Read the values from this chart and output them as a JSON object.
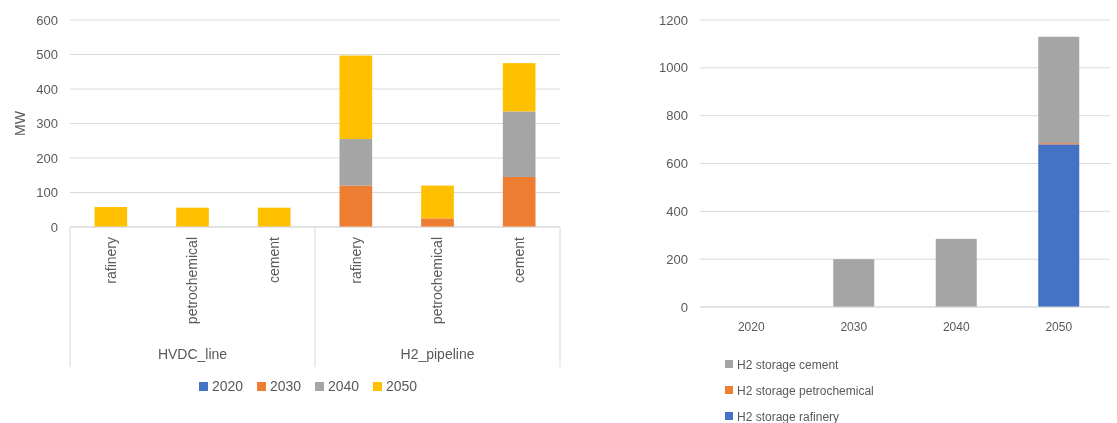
{
  "chart_data": [
    {
      "type": "bar",
      "stacked": true,
      "ylabel": "MW",
      "categories": [
        "rafinery",
        "petrochemical",
        "cement",
        "rafinery",
        "petrochemical",
        "cement"
      ],
      "annotations": [
        "HVDC_line",
        "H2_pipeline"
      ],
      "series": [
        {
          "name": "2020",
          "color": "#4472c4",
          "values": [
            0,
            0,
            0,
            0,
            0,
            0
          ]
        },
        {
          "name": "2030",
          "color": "#ed7d31",
          "values": [
            0,
            0,
            0,
            120,
            25,
            145
          ]
        },
        {
          "name": "2040",
          "color": "#a5a5a5",
          "values": [
            0,
            0,
            0,
            135,
            0,
            190
          ]
        },
        {
          "name": "2050",
          "color": "#ffc000",
          "values": [
            58,
            56,
            56,
            242,
            95,
            140
          ]
        }
      ],
      "ylim": [
        0,
        600
      ],
      "yticks": [
        0,
        100,
        200,
        300,
        400,
        500,
        600
      ],
      "grid": "y",
      "legend": "bottom"
    },
    {
      "type": "bar",
      "stacked": true,
      "categories": [
        "2020",
        "2030",
        "2040",
        "2050"
      ],
      "series": [
        {
          "name": "H2 storage rafinery",
          "color": "#4472c4",
          "values": [
            0,
            0,
            0,
            680
          ]
        },
        {
          "name": "H2 storage petrochemical",
          "color": "#ed7d31",
          "values": [
            0,
            0,
            0,
            5
          ]
        },
        {
          "name": "H2 storage cement",
          "color": "#a5a5a5",
          "values": [
            0,
            200,
            285,
            445
          ]
        }
      ],
      "ylim": [
        0,
        1200
      ],
      "yticks": [
        0,
        200,
        400,
        600,
        800,
        1000,
        1200
      ],
      "grid": "y",
      "legend": "bottom left"
    }
  ]
}
